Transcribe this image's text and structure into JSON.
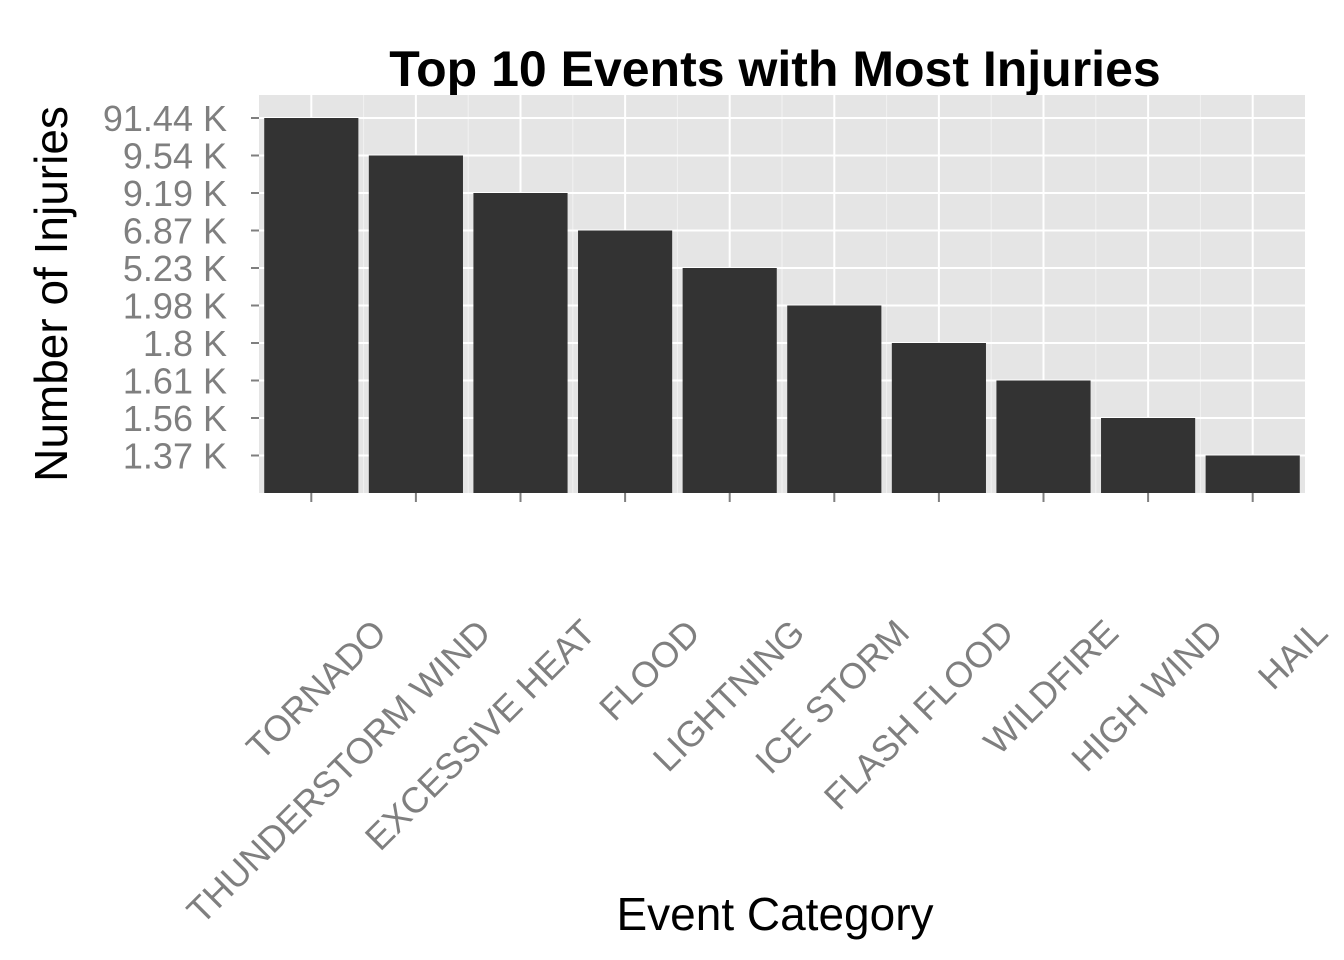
{
  "chart_data": {
    "type": "bar",
    "title": "Top 10 Events with Most Injuries",
    "xlabel": "Event Category",
    "ylabel": "Number of Injuries",
    "y_scale": "ordinal",
    "categories": [
      "TORNADO",
      "THUNDERSTORM WIND",
      "EXCESSIVE HEAT",
      "FLOOD",
      "LIGHTNING",
      "ICE STORM",
      "FLASH FLOOD",
      "WILDFIRE",
      "HIGH WIND",
      "HAIL"
    ],
    "value_labels": [
      "91.44 K",
      "9.54 K",
      "9.19 K",
      "6.87 K",
      "5.23 K",
      "1.98 K",
      "1.8 K",
      "1.61 K",
      "1.56 K",
      "1.37 K"
    ],
    "values": [
      91440,
      9540,
      9190,
      6870,
      5230,
      1980,
      1800,
      1610,
      1560,
      1370
    ],
    "y_ticks": [
      "1.37 K",
      "1.56 K",
      "1.61 K",
      "1.8 K",
      "1.98 K",
      "5.23 K",
      "6.87 K",
      "9.19 K",
      "9.54 K",
      "91.44 K"
    ],
    "grid": true,
    "colors": {
      "panel": "#e5e5e5",
      "grid": "#ffffff",
      "bar": "#333333",
      "tick_text": "#7f7f7f",
      "tick_mark": "#7f7f7f"
    }
  }
}
